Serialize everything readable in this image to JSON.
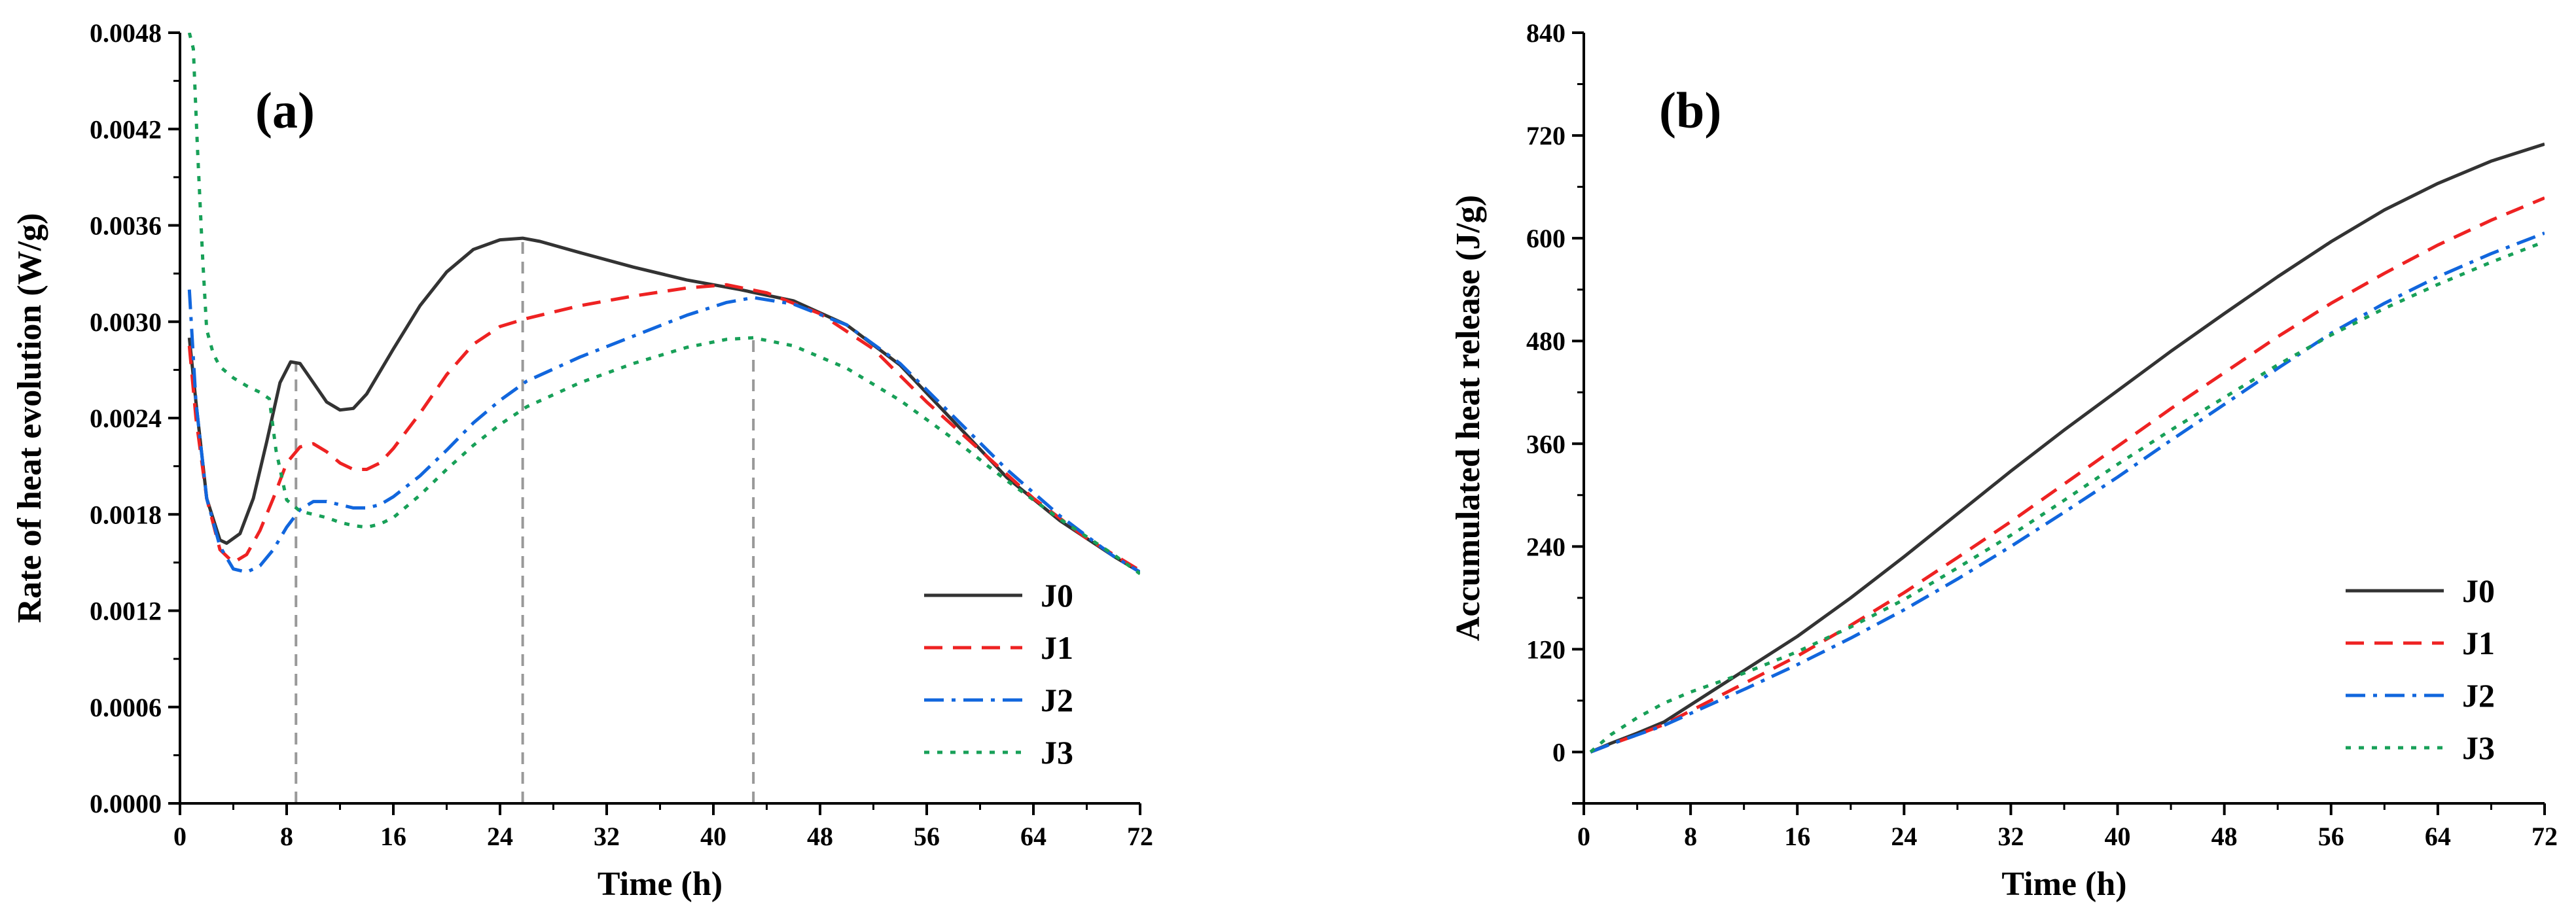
{
  "figure": {
    "background": "#ffffff"
  },
  "series_styles": {
    "J0": {
      "color": "#333333",
      "dash": ""
    },
    "J1": {
      "color": "#ee2222",
      "dash": "28,16"
    },
    "J2": {
      "color": "#1166dd",
      "dash": "30,12,6,12"
    },
    "J3": {
      "color": "#18a058",
      "dash": "8,12"
    }
  },
  "chart_data": [
    {
      "type": "line",
      "panel_label": "(a)",
      "xlabel": "Time (h)",
      "ylabel": "Rate of heat evolution (W/g)",
      "xlim": [
        0,
        72
      ],
      "ylim": [
        0,
        0.0048
      ],
      "x_ticks": [
        "0",
        "8",
        "16",
        "24",
        "32",
        "40",
        "48",
        "56",
        "64",
        "72"
      ],
      "y_ticks": [
        "0.0000",
        "0.0006",
        "0.0012",
        "0.0018",
        "0.0024",
        "0.0030",
        "0.0036",
        "0.0042",
        "0.0048"
      ],
      "vlines": [
        8.7,
        25.7,
        43.0
      ],
      "legend_position": "bottom-right",
      "series": [
        {
          "name": "J0",
          "x": [
            0.7,
            1.2,
            2.0,
            3.0,
            3.5,
            4.5,
            5.5,
            6.5,
            7.5,
            8.3,
            9.0,
            10.0,
            11.0,
            12.0,
            13.0,
            14.0,
            16.0,
            18.0,
            20.0,
            22.0,
            24.0,
            25.7,
            27.0,
            30.0,
            34.0,
            38.0,
            42.0,
            46.0,
            50.0,
            54.0,
            58.0,
            62.0,
            66.0,
            70.0,
            72.0
          ],
          "y": [
            0.0029,
            0.0025,
            0.0019,
            0.00164,
            0.00162,
            0.00168,
            0.0019,
            0.00225,
            0.00262,
            0.00275,
            0.00274,
            0.00262,
            0.0025,
            0.00245,
            0.00246,
            0.00255,
            0.00283,
            0.0031,
            0.00331,
            0.00345,
            0.00351,
            0.00352,
            0.0035,
            0.00343,
            0.00334,
            0.00326,
            0.0032,
            0.00313,
            0.00298,
            0.00273,
            0.00238,
            0.00203,
            0.00176,
            0.00154,
            0.00144
          ]
        },
        {
          "name": "J1",
          "x": [
            0.7,
            1.2,
            2.0,
            3.0,
            4.0,
            5.0,
            6.0,
            7.0,
            8.0,
            9.0,
            10.0,
            11.0,
            12.0,
            13.0,
            14.0,
            15.0,
            16.0,
            18.0,
            20.0,
            22.0,
            24.0,
            26.0,
            30.0,
            34.0,
            38.0,
            41.0,
            44.0,
            48.0,
            52.0,
            56.0,
            60.0,
            64.0,
            68.0,
            72.0
          ],
          "y": [
            0.00285,
            0.0024,
            0.0019,
            0.00158,
            0.0015,
            0.00155,
            0.0017,
            0.0019,
            0.00212,
            0.00222,
            0.00224,
            0.00219,
            0.00212,
            0.00208,
            0.00208,
            0.00212,
            0.00221,
            0.00243,
            0.00267,
            0.00286,
            0.00297,
            0.00302,
            0.0031,
            0.00316,
            0.00321,
            0.00323,
            0.00318,
            0.00305,
            0.00283,
            0.0025,
            0.0022,
            0.0019,
            0.00165,
            0.00145
          ]
        },
        {
          "name": "J2",
          "x": [
            0.7,
            1.2,
            2.0,
            3.0,
            4.0,
            5.0,
            6.0,
            7.0,
            8.0,
            9.0,
            10.0,
            11.0,
            12.0,
            13.0,
            14.0,
            15.0,
            16.0,
            18.0,
            20.0,
            22.0,
            24.0,
            26.0,
            30.0,
            34.0,
            38.0,
            41.0,
            43.0,
            46.0,
            50.0,
            54.0,
            58.0,
            62.0,
            66.0,
            70.0,
            72.0
          ],
          "y": [
            0.0032,
            0.0025,
            0.0019,
            0.0016,
            0.00146,
            0.00144,
            0.00148,
            0.00158,
            0.00172,
            0.00183,
            0.00188,
            0.00188,
            0.00186,
            0.00184,
            0.00184,
            0.00186,
            0.00191,
            0.00204,
            0.0022,
            0.00237,
            0.00251,
            0.00263,
            0.00278,
            0.00291,
            0.00304,
            0.00312,
            0.00315,
            0.00311,
            0.00298,
            0.00274,
            0.00241,
            0.00208,
            0.00179,
            0.00154,
            0.00144
          ]
        },
        {
          "name": "J3",
          "x": [
            0.7,
            1.0,
            1.3,
            1.7,
            2.0,
            2.5,
            3.0,
            4.0,
            5.0,
            6.0,
            6.7,
            7.2,
            8.0,
            9.0,
            10.0,
            11.0,
            12.0,
            13.0,
            14.0,
            15.0,
            16.0,
            18.0,
            20.0,
            22.0,
            24.0,
            26.0,
            30.0,
            34.0,
            38.0,
            41.0,
            43.0,
            46.0,
            50.0,
            54.0,
            58.0,
            62.0,
            66.0,
            70.0,
            72.0
          ],
          "y": [
            0.0048,
            0.0047,
            0.0041,
            0.0034,
            0.00295,
            0.0028,
            0.00272,
            0.00265,
            0.0026,
            0.00256,
            0.00252,
            0.0022,
            0.00189,
            0.00182,
            0.0018,
            0.00178,
            0.00175,
            0.00173,
            0.00172,
            0.00174,
            0.00178,
            0.00192,
            0.00208,
            0.00223,
            0.00236,
            0.00247,
            0.00262,
            0.00274,
            0.00284,
            0.00289,
            0.0029,
            0.00285,
            0.00271,
            0.00251,
            0.00227,
            0.00201,
            0.00177,
            0.00155,
            0.00143
          ]
        }
      ]
    },
    {
      "type": "line",
      "panel_label": "(b)",
      "xlabel": "Time (h)",
      "ylabel": "Accumulated heat release (J/g)",
      "xlim": [
        0,
        72
      ],
      "ylim": [
        -60,
        840
      ],
      "x_ticks": [
        "0",
        "8",
        "16",
        "24",
        "32",
        "40",
        "48",
        "56",
        "64",
        "72"
      ],
      "y_ticks": [
        "0",
        "120",
        "240",
        "360",
        "480",
        "600",
        "720",
        "840"
      ],
      "legend_position": "bottom-right",
      "series": [
        {
          "name": "J0",
          "x": [
            0.5,
            2,
            4,
            6,
            8,
            12,
            16,
            20,
            24,
            28,
            32,
            36,
            40,
            44,
            48,
            52,
            56,
            60,
            64,
            68,
            72
          ],
          "y": [
            0,
            10,
            22,
            35,
            55,
            95,
            135,
            180,
            228,
            278,
            328,
            376,
            422,
            468,
            512,
            555,
            596,
            633,
            664,
            690,
            710
          ]
        },
        {
          "name": "J1",
          "x": [
            0.5,
            2,
            4,
            6,
            8,
            12,
            16,
            20,
            24,
            28,
            32,
            36,
            40,
            44,
            48,
            52,
            56,
            60,
            64,
            68,
            72
          ],
          "y": [
            0,
            9,
            20,
            32,
            48,
            80,
            112,
            148,
            186,
            227,
            269,
            313,
            357,
            401,
            443,
            485,
            524,
            559,
            592,
            621,
            647
          ]
        },
        {
          "name": "J2",
          "x": [
            0.5,
            2,
            4,
            6,
            8,
            12,
            16,
            20,
            24,
            28,
            32,
            36,
            40,
            44,
            48,
            52,
            56,
            60,
            64,
            68,
            72
          ],
          "y": [
            0,
            9,
            20,
            31,
            45,
            73,
            102,
            133,
            166,
            202,
            240,
            280,
            321,
            364,
            406,
            448,
            489,
            524,
            555,
            582,
            606
          ]
        },
        {
          "name": "J3",
          "x": [
            0.5,
            2,
            4,
            6,
            8,
            12,
            16,
            20,
            24,
            28,
            32,
            36,
            40,
            44,
            48,
            52,
            56,
            60,
            64,
            68,
            72
          ],
          "y": [
            0,
            20,
            40,
            57,
            70,
            92,
            117,
            146,
            178,
            215,
            253,
            294,
            336,
            376,
            414,
            452,
            487,
            518,
            546,
            572,
            596
          ]
        }
      ]
    }
  ]
}
